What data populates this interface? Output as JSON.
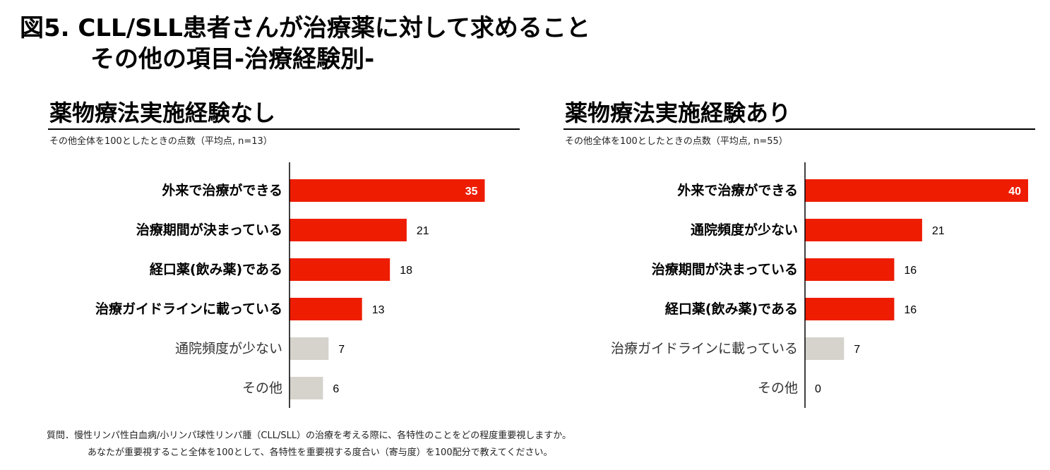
{
  "title": {
    "line1": "図5. CLL/SLL患者さんが治療薬に対して求めること",
    "line2": "その他の項目-治療経験別-"
  },
  "colors": {
    "highlight": "#ee1c00",
    "muted": "#d6d2cc",
    "axis": "#000000"
  },
  "chart_data": [
    {
      "type": "bar",
      "orientation": "horizontal",
      "title": "薬物療法実施経験なし",
      "subtitle": "その他全体を100としたときの点数（平均点, n=13）",
      "categories": [
        "外来で治療ができる",
        "治療期間が決まっている",
        "経口薬(飲み薬)である",
        "治療ガイドラインに載っている",
        "通院頻度が少ない",
        "その他"
      ],
      "values": [
        35,
        21,
        18,
        13,
        7,
        6
      ],
      "highlighted": [
        true,
        true,
        true,
        true,
        false,
        false
      ],
      "xlim": [
        0,
        40
      ]
    },
    {
      "type": "bar",
      "orientation": "horizontal",
      "title": "薬物療法実施経験あり",
      "subtitle": "その他全体を100としたときの点数（平均点, n=55）",
      "categories": [
        "外来で治療ができる",
        "通院頻度が少ない",
        "治療期間が決まっている",
        "経口薬(飲み薬)である",
        "治療ガイドラインに載っている",
        "その他"
      ],
      "values": [
        40,
        21,
        16,
        16,
        7,
        0
      ],
      "highlighted": [
        true,
        true,
        true,
        true,
        false,
        false
      ],
      "xlim": [
        0,
        40
      ]
    }
  ],
  "footer": {
    "line1": "質問．慢性リンパ性白血病/小リンパ球性リンパ腫（CLL/SLL）の治療を考える際に、各特性のことをどの程度重要視しますか。",
    "line2": "あなたが重要視すること全体を100として、各特性を重要視する度合い（寄与度）を100配分で教えてください。"
  }
}
